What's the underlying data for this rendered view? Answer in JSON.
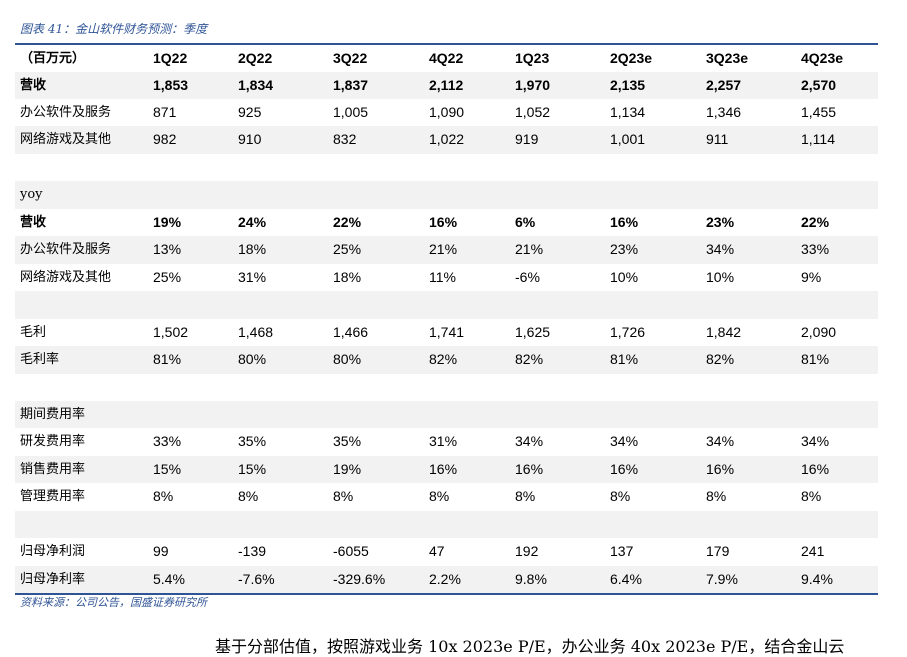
{
  "title": "图表 41：金山软件财务预测：季度",
  "table": {
    "header": [
      "（百万元）",
      "1Q22",
      "2Q22",
      "3Q22",
      "4Q22",
      "1Q23",
      "2Q23e",
      "3Q23e",
      "4Q23e"
    ],
    "rows": [
      [
        "营收",
        "1,853",
        "1,834",
        "1,837",
        "2,112",
        "1,970",
        "2,135",
        "2,257",
        "2,570"
      ],
      [
        "办公软件及服务",
        "871",
        "925",
        "1,005",
        "1,090",
        "1,052",
        "1,134",
        "1,346",
        "1,455"
      ],
      [
        "网络游戏及其他",
        "982",
        "910",
        "832",
        "1,022",
        "919",
        "1,001",
        "911",
        "1,114"
      ],
      [],
      [
        "yoy"
      ],
      [
        "营收",
        "19%",
        "24%",
        "22%",
        "16%",
        "6%",
        "16%",
        "23%",
        "22%"
      ],
      [
        "办公软件及服务",
        "13%",
        "18%",
        "25%",
        "21%",
        "21%",
        "23%",
        "34%",
        "33%"
      ],
      [
        "网络游戏及其他",
        "25%",
        "31%",
        "18%",
        "11%",
        "-6%",
        "10%",
        "10%",
        "9%"
      ],
      [],
      [
        "毛利",
        "1,502",
        "1,468",
        "1,466",
        "1,741",
        "1,625",
        "1,726",
        "1,842",
        "2,090"
      ],
      [
        "毛利率",
        "81%",
        "80%",
        "80%",
        "82%",
        "82%",
        "81%",
        "82%",
        "81%"
      ],
      [],
      [
        "期间费用率"
      ],
      [
        "研发费用率",
        "33%",
        "35%",
        "35%",
        "31%",
        "34%",
        "34%",
        "34%",
        "34%"
      ],
      [
        "销售费用率",
        "15%",
        "15%",
        "19%",
        "16%",
        "16%",
        "16%",
        "16%",
        "16%"
      ],
      [
        "管理费用率",
        "8%",
        "8%",
        "8%",
        "8%",
        "8%",
        "8%",
        "8%",
        "8%"
      ],
      [],
      [
        "归母净利润",
        "99",
        "-139",
        "-6055",
        "47",
        "192",
        "137",
        "179",
        "241"
      ],
      [
        "归母净利率",
        "5.4%",
        "-7.6%",
        "-329.6%",
        "2.2%",
        "9.8%",
        "6.4%",
        "7.9%",
        "9.4%"
      ]
    ]
  },
  "source": "资料来源：公司公告，国盛证券研究所",
  "body_text": "基于分部估值，按照游戏业务 10x 2023e P/E，办公业务 40x 2023e P/E，结合金山云"
}
